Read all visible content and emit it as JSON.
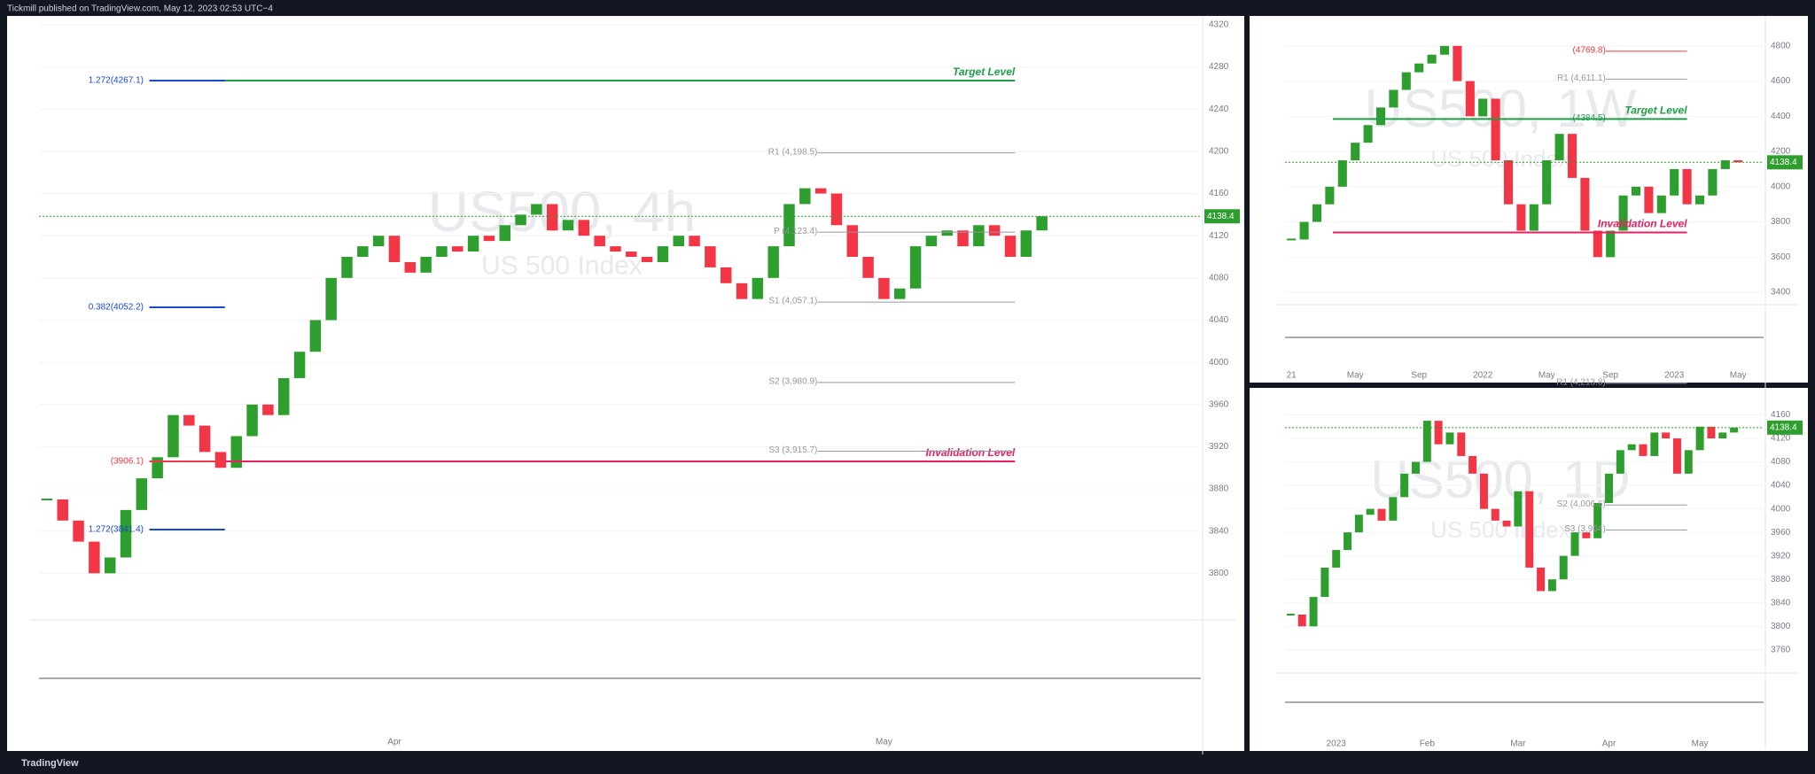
{
  "header": {
    "text": "Tickmill published on TradingView.com, May 12, 2023 02:53 UTC−4"
  },
  "footer": {
    "brand": "TradingView"
  },
  "chart_data": [
    {
      "type": "candlestick",
      "title": "US500, 4h",
      "subtitle": "US 500 Index",
      "up_color": "#2e9e2e",
      "down_color": "#f23645",
      "values": [
        3870,
        3850,
        3830,
        3800,
        3815,
        3860,
        3890,
        3910,
        3950,
        3940,
        3915,
        3900,
        3930,
        3960,
        3950,
        3985,
        4010,
        4040,
        4080,
        4100,
        4110,
        4120,
        4095,
        4085,
        4100,
        4110,
        4105,
        4120,
        4115,
        4130,
        4140,
        4150,
        4125,
        4135,
        4120,
        4110,
        4105,
        4100,
        4095,
        4110,
        4120,
        4110,
        4090,
        4075,
        4060,
        4080,
        4110,
        4150,
        4165,
        4160,
        4130,
        4100,
        4080,
        4060,
        4070,
        4110,
        4120,
        4125,
        4110,
        4130,
        4120,
        4100,
        4125,
        4138.4
      ],
      "categories": [
        null,
        null,
        null,
        null,
        null,
        null,
        null,
        null,
        null,
        null,
        null,
        null,
        null,
        null,
        null,
        null,
        null,
        null,
        null,
        null,
        null,
        null,
        "Apr",
        null,
        null,
        null,
        null,
        null,
        null,
        null,
        null,
        null,
        null,
        null,
        null,
        null,
        null,
        null,
        null,
        null,
        null,
        null,
        null,
        null,
        null,
        null,
        null,
        null,
        null,
        null,
        null,
        null,
        null,
        "May",
        null,
        null,
        null,
        null,
        null,
        null,
        null,
        null,
        null,
        null
      ],
      "ylim": [
        3760,
        4325
      ],
      "yticks": [
        3800,
        3840,
        3880,
        3920,
        3960,
        4000,
        4040,
        4080,
        4120,
        4160,
        4200,
        4240,
        4280,
        4320
      ],
      "zones": [
        {
          "label": "Target Level",
          "value": 4267.1,
          "color": "#1e9e4a"
        },
        {
          "label": "Invalidation Level",
          "value": 3906.1,
          "color": "#e91e63"
        }
      ],
      "pivots": [
        {
          "label": "R1 (4,198.5)",
          "value": 4198.5,
          "color": "#9598a1"
        },
        {
          "label": "P (4,123.4)",
          "value": 4123.4,
          "color": "#9598a1"
        },
        {
          "label": "S1 (4,057.1)",
          "value": 4057.1,
          "color": "#9598a1"
        },
        {
          "label": "S2 (3,980.9)",
          "value": 3980.9,
          "color": "#9598a1"
        },
        {
          "label": "S3 (3,915.7)",
          "value": 3915.7,
          "color": "#9598a1"
        }
      ],
      "fibs": [
        {
          "label": "1.272(4267.1)",
          "value": 4267.1,
          "color": "#1848cc"
        },
        {
          "label": "0.382(4052.2)",
          "value": 4052.2,
          "color": "#1848cc"
        },
        {
          "label": "(3906.1)",
          "value": 3906.1,
          "color": "#f23645"
        },
        {
          "label": "1.272(3841.4)",
          "value": 3841.4,
          "color": "#1848cc"
        }
      ]
    },
    {
      "type": "candlestick",
      "title": "US500, 1W",
      "subtitle": "US 500 Index",
      "up_color": "#2e9e2e",
      "down_color": "#f23645",
      "values": [
        3700,
        3800,
        3900,
        4000,
        4150,
        4250,
        4350,
        4450,
        4550,
        4650,
        4700,
        4750,
        4800,
        4600,
        4400,
        4500,
        4150,
        3900,
        3750,
        3900,
        4150,
        4300,
        4050,
        3750,
        3600,
        3750,
        3950,
        4000,
        3850,
        3950,
        4100,
        3900,
        3950,
        4100,
        4150,
        4138.4
      ],
      "categories": [
        "21",
        null,
        null,
        null,
        null,
        "May",
        null,
        null,
        null,
        null,
        "Sep",
        null,
        null,
        null,
        null,
        "2022",
        null,
        null,
        null,
        null,
        "May",
        null,
        null,
        null,
        null,
        "Sep",
        null,
        null,
        null,
        null,
        "2023",
        null,
        null,
        null,
        null,
        "May"
      ],
      "ylim": [
        3350,
        4950
      ],
      "yticks": [
        3400,
        3600,
        3800,
        4000,
        4200,
        4400,
        4600,
        4800
      ],
      "zones": [
        {
          "label": "Target Level",
          "value": 4384.5,
          "color": "#1e9e4a"
        },
        {
          "label": "Invalidation Level",
          "value": 3740,
          "color": "#e91e63"
        }
      ],
      "pivots": [
        {
          "label": "(4769.8)",
          "value": 4769.8,
          "color": "#f23645"
        },
        {
          "label": "R1 (4,611.1)",
          "value": 4611.1,
          "color": "#9598a1"
        },
        {
          "label": "(4384.5)",
          "value": 4384.5,
          "color": "#1e9e4a"
        }
      ],
      "fibs": []
    },
    {
      "type": "candlestick",
      "title": "US500, 1D",
      "subtitle": "US 500 Index",
      "up_color": "#2e9e2e",
      "down_color": "#f23645",
      "values": [
        3820,
        3800,
        3850,
        3900,
        3930,
        3960,
        3990,
        4000,
        3980,
        4020,
        4060,
        4080,
        4150,
        4110,
        4130,
        4090,
        4060,
        4000,
        3980,
        3970,
        4030,
        3900,
        3860,
        3880,
        3920,
        3960,
        3950,
        4010,
        4060,
        4100,
        4110,
        4090,
        4130,
        4120,
        4060,
        4100,
        4140,
        4120,
        4130,
        4138.4
      ],
      "categories": [
        null,
        null,
        null,
        null,
        "2023",
        null,
        null,
        null,
        null,
        null,
        null,
        null,
        "Feb",
        null,
        null,
        null,
        null,
        null,
        null,
        null,
        "Mar",
        null,
        null,
        null,
        null,
        null,
        null,
        null,
        "Apr",
        null,
        null,
        null,
        null,
        null,
        null,
        null,
        "May",
        null,
        null,
        null
      ],
      "ylim": [
        3725,
        4200
      ],
      "yticks": [
        3760,
        3800,
        3840,
        3880,
        3920,
        3960,
        4000,
        4040,
        4080,
        4120,
        4160
      ],
      "zones": [],
      "pivots": [
        {
          "label": "R1 (4,213.8)",
          "value": 4213.8,
          "color": "#9598a1"
        },
        {
          "label": "S2 (4,006.6)",
          "value": 4006.6,
          "color": "#9598a1"
        },
        {
          "label": "S3 (3,964)",
          "value": 3964,
          "color": "#9598a1"
        }
      ],
      "fibs": []
    }
  ]
}
